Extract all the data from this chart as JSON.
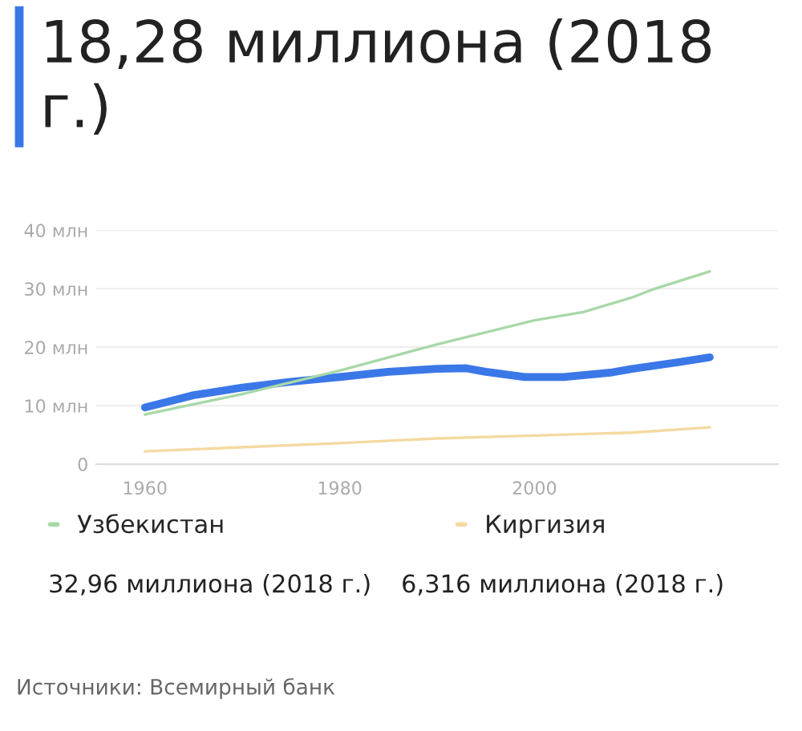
{
  "chart_data": {
    "type": "line",
    "title": "18,28 миллиона (2018 г.)",
    "series": [
      {
        "color": "#3b78e7",
        "x": [
          1960,
          1965,
          1970,
          1975,
          1980,
          1985,
          1990,
          1993,
          1995,
          1999,
          2003,
          2008,
          2010,
          2015,
          2018
        ],
        "values": [
          9.7,
          11.8,
          13.1,
          14.1,
          14.9,
          15.8,
          16.3,
          16.4,
          15.8,
          14.9,
          14.9,
          15.7,
          16.3,
          17.5,
          18.28
        ]
      },
      {
        "name": "Узбекистан",
        "color": "#a8d8a8",
        "x": [
          1960,
          1970,
          1980,
          1990,
          2000,
          2005,
          2010,
          2012,
          2018
        ],
        "values": [
          8.5,
          12,
          16,
          20.5,
          24.6,
          26,
          28.5,
          29.8,
          32.96
        ]
      },
      {
        "name": "Киргизия",
        "color": "#f5d9a0",
        "x": [
          1960,
          1980,
          1990,
          2000,
          2010,
          2018
        ],
        "values": [
          2.2,
          3.6,
          4.4,
          4.9,
          5.4,
          6.316
        ]
      }
    ],
    "xlim": [
      1955,
      2025
    ],
    "xticks": [
      1960,
      1980,
      2000
    ],
    "ylim": [
      0,
      40
    ],
    "yticks": [
      {
        "value": 0,
        "label": "0"
      },
      {
        "value": 10,
        "label": "10 млн"
      },
      {
        "value": 20,
        "label": "20 млн"
      },
      {
        "value": 30,
        "label": "30 млн"
      },
      {
        "value": 40,
        "label": "40 млн"
      }
    ],
    "grid": "y",
    "legend": "bottom",
    "annotations": [
      "32,96 миллиона (2018 г.)",
      "6,316 миллиона (2018 г.)",
      "Источники: Всемирный банк"
    ]
  }
}
